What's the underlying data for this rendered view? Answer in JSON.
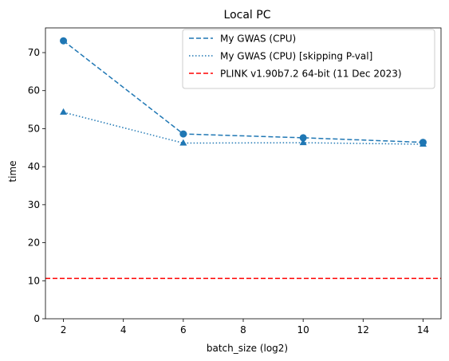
{
  "chart_data": {
    "type": "line",
    "title": "Local PC",
    "xlabel": "batch_size (log2)",
    "ylabel": "time",
    "xlim": [
      1.4,
      14.6
    ],
    "ylim": [
      0,
      76.5
    ],
    "xticks": [
      2,
      4,
      6,
      8,
      10,
      12,
      14
    ],
    "yticks": [
      0,
      10,
      20,
      30,
      40,
      50,
      60,
      70
    ],
    "grid": false,
    "legend_position": "top-right",
    "series": [
      {
        "name": "My GWAS (CPU)",
        "x": [
          2,
          6,
          10,
          14
        ],
        "y": [
          73.1,
          48.6,
          47.6,
          46.4
        ],
        "color": "#1f77b4",
        "line_style": "dashed",
        "marker": "circle"
      },
      {
        "name": "My GWAS (CPU) [skipping P-val]",
        "x": [
          2,
          6,
          10,
          14
        ],
        "y": [
          54.3,
          46.2,
          46.3,
          45.9
        ],
        "color": "#1f77b4",
        "line_style": "dotted",
        "marker": "triangle"
      }
    ],
    "reference_lines": [
      {
        "name": "PLINK v1.90b7.2 64-bit (11 Dec 2023)",
        "orientation": "horizontal",
        "y": 10.6,
        "color": "#ff0000",
        "line_style": "dashed"
      }
    ]
  }
}
